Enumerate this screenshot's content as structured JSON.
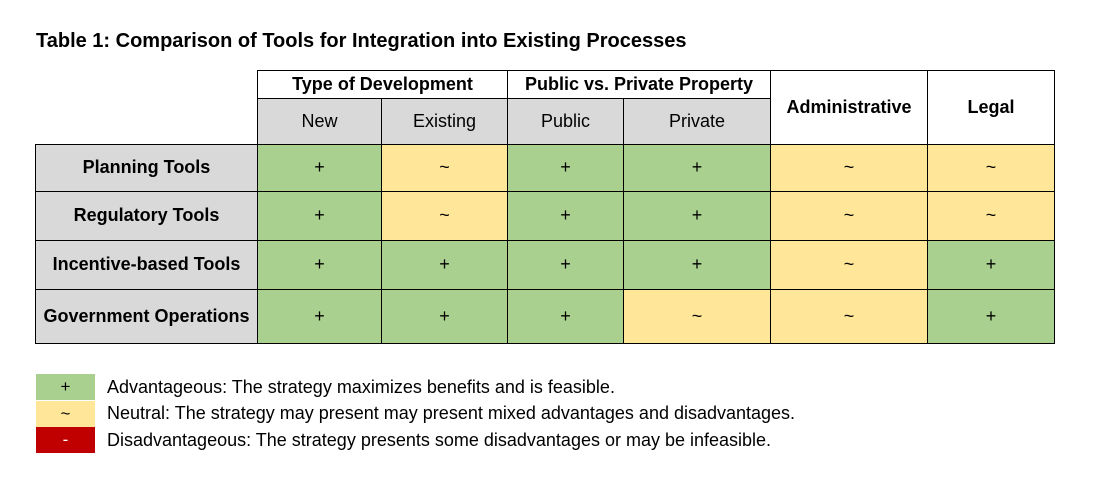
{
  "title": "Table 1: Comparison of Tools for Integration into Existing Processes",
  "colors": {
    "advantageous": "#a9d08e",
    "neutral": "#ffe699",
    "disadvantageous": "#c00000",
    "header_gray": "#d9d9d9"
  },
  "header": {
    "groups": [
      "Type of Development",
      "Public vs. Private Property"
    ],
    "sub": [
      "New",
      "Existing",
      "Public",
      "Private"
    ],
    "side": [
      "Administrative",
      "Legal"
    ]
  },
  "rows": [
    {
      "label": "Planning Tools",
      "cells": [
        "+",
        "~",
        "+",
        "+",
        "~",
        "~"
      ],
      "kinds": [
        "adv",
        "neu",
        "adv",
        "adv",
        "neu",
        "neu"
      ]
    },
    {
      "label": "Regulatory Tools",
      "cells": [
        "+",
        "~",
        "+",
        "+",
        "~",
        "~"
      ],
      "kinds": [
        "adv",
        "neu",
        "adv",
        "adv",
        "neu",
        "neu"
      ]
    },
    {
      "label": "Incentive-based Tools",
      "cells": [
        "+",
        "+",
        "+",
        "+",
        "~",
        "+"
      ],
      "kinds": [
        "adv",
        "adv",
        "adv",
        "adv",
        "neu",
        "adv"
      ]
    },
    {
      "label": "Government Operations",
      "cells": [
        "+",
        "+",
        "+",
        "~",
        "~",
        "+"
      ],
      "kinds": [
        "adv",
        "adv",
        "adv",
        "neu",
        "neu",
        "adv"
      ]
    }
  ],
  "legend": [
    {
      "symbol": "+",
      "kind": "adv",
      "text": "Advantageous: The strategy maximizes benefits and is feasible."
    },
    {
      "symbol": "~",
      "kind": "neu",
      "text": "Neutral: The strategy may present may present mixed advantages and disadvantages."
    },
    {
      "symbol": "-",
      "kind": "dis",
      "text": "Disadvantageous: The strategy presents some disadvantages or may be infeasible."
    }
  ]
}
